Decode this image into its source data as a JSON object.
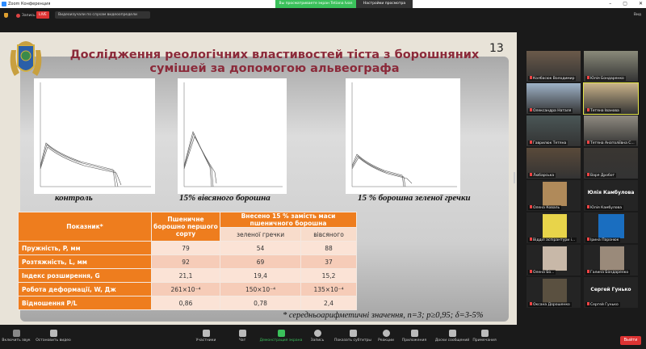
{
  "window": {
    "title": "Zoom Конференция",
    "share_banner": "Вы просматриваете экран Tetiana Ivan",
    "view_options": "Настройки просмотра",
    "controls": [
      "–",
      "▢",
      "✕"
    ]
  },
  "topbar": {
    "recording": "Запись",
    "live": "LIVE",
    "speaker": "Видеоизучали по слухам видеоопредели",
    "view": "Вид"
  },
  "slide": {
    "number": "13",
    "title": "Дослідження реологічних властивостей тіста з борошняних сумішей за допомогою альвеографа",
    "charts": [
      {
        "caption": "контроль"
      },
      {
        "caption": "15% вівсяного борошна"
      },
      {
        "caption": "15 % борошна зеленої гречки"
      }
    ],
    "table": {
      "header_indicator": "Показник*",
      "header_wheat": "Пшеничне борошно першого сорту",
      "header_group": "Внесено 15 % замість маси пшеничного борошна",
      "header_sub": [
        "зеленої гречки",
        "вівсяного"
      ],
      "rows": [
        {
          "label": "Пружність, P, мм",
          "values": [
            "79",
            "54",
            "88"
          ]
        },
        {
          "label": "Розтяжність, L, мм",
          "values": [
            "92",
            "69",
            "37"
          ]
        },
        {
          "label": "Індекс розширення, G",
          "values": [
            "21,1",
            "19,4",
            "15,2"
          ]
        },
        {
          "label": "Робота деформації, W, Дж",
          "values": [
            "261×10⁻⁴",
            "150×10⁻⁴",
            "135×10⁻⁴"
          ]
        },
        {
          "label": "Відношення P/L",
          "values": [
            "0,86",
            "0,78",
            "2,4"
          ]
        }
      ]
    },
    "note": "* середньоарифметичні значення, n=3; p≥0,95; δ=3-5%"
  },
  "participants": [
    {
      "name": "Колбасюк Володимир"
    },
    {
      "name": "Юлія Бондаренко"
    },
    {
      "name": "Олександра Наталя"
    },
    {
      "name": "Тетяна Іванова",
      "active": true
    },
    {
      "name": "Гаврилюк Тетяна"
    },
    {
      "name": "Тетяна Анатоліївна С..."
    },
    {
      "name": "Любарська"
    },
    {
      "name": "Варя Дробот"
    },
    {
      "name": "Олена Коваль"
    },
    {
      "name": "Юлія Камбулова",
      "big": "Юлія Камбулова"
    },
    {
      "name": "Відділ аспірантури і..."
    },
    {
      "name": "Ірина Паронюк"
    },
    {
      "name": "Олена Бо..."
    },
    {
      "name": "Галина Бондаренко"
    },
    {
      "name": "Оксана Дорошенко"
    },
    {
      "name": "Сергей Гунько",
      "big": "Сергей Гунько"
    }
  ],
  "toolbar": {
    "items": [
      "Включить звук",
      "Остановить видео",
      "Участники",
      "Чат",
      "Демонстрация экрана",
      "Запись",
      "Показать субтитры",
      "Реакции",
      "Приложения",
      "Доски сообщений",
      "Примечания"
    ],
    "participants_count": "16",
    "leave": "Выйти"
  }
}
